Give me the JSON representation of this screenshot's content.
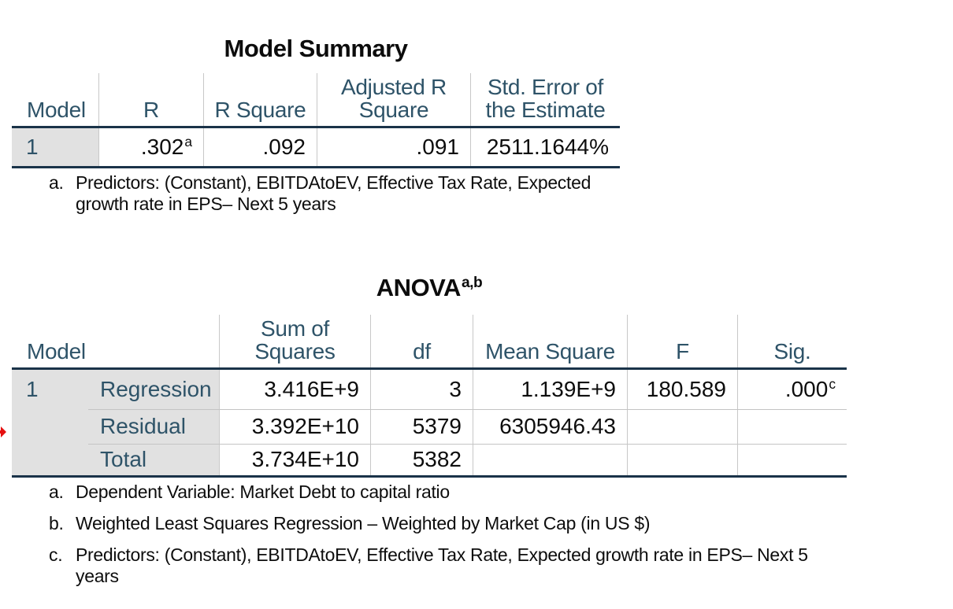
{
  "colors": {
    "header_text": "#2e5368",
    "table_border": "#1a3349",
    "cell_shade": "#e1e1e1",
    "grid_line": "#c8c8c8",
    "marker_red": "#e51010",
    "body_text": "#0d0d0d"
  },
  "model_summary": {
    "title": "Model Summary",
    "headers": {
      "model": "Model",
      "r": "R",
      "r_square": "R Square",
      "adj_r_line1": "Adjusted R",
      "adj_r_line2": "Square",
      "std_err_line1": "Std. Error of",
      "std_err_line2": "the Estimate"
    },
    "row": {
      "model": "1",
      "r": ".302",
      "r_sup": "a",
      "r_square": ".092",
      "adj_r_square": ".091",
      "std_error": "2511.1644%"
    },
    "footnote": {
      "marker": "a.",
      "text": "Predictors: (Constant), EBITDAtoEV, Effective Tax Rate, Expected growth rate in EPS– Next 5 years"
    }
  },
  "anova": {
    "title": "ANOVA",
    "title_sup": "a,b",
    "headers": {
      "model": "Model",
      "sum_line1": "Sum of",
      "sum_line2": "Squares",
      "df": "df",
      "mean_square": "Mean Square",
      "f": "F",
      "sig": "Sig."
    },
    "model_number": "1",
    "rows": [
      {
        "label": "Regression",
        "sum_of_squares": "3.416E+9",
        "df": "3",
        "mean_square": "1.139E+9",
        "f": "180.589",
        "sig": ".000",
        "sig_sup": "c"
      },
      {
        "label": "Residual",
        "sum_of_squares": "3.392E+10",
        "df": "5379",
        "mean_square": "6305946.43",
        "f": "",
        "sig": "",
        "sig_sup": ""
      },
      {
        "label": "Total",
        "sum_of_squares": "3.734E+10",
        "df": "5382",
        "mean_square": "",
        "f": "",
        "sig": "",
        "sig_sup": ""
      }
    ],
    "footnotes": [
      {
        "marker": "a.",
        "text": "Dependent Variable: Market Debt to capital ratio"
      },
      {
        "marker": "b.",
        "text": "Weighted Least Squares Regression – Weighted by Market Cap (in US $)"
      },
      {
        "marker": "c.",
        "text": "Predictors: (Constant), EBITDAtoEV, Effective Tax Rate, Expected growth rate in EPS– Next 5 years"
      }
    ]
  }
}
